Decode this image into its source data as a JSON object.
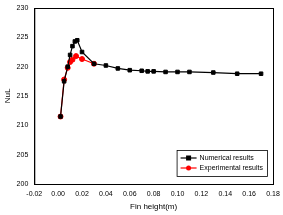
{
  "chart_data": {
    "type": "line",
    "x_label": "Fin height(m)",
    "y_label": "NuL",
    "xlim": [
      -0.02,
      0.18
    ],
    "xticks": [
      -0.02,
      {
        "value": 0,
        "label": "0.00"
      },
      0.02,
      0.04,
      0.06,
      0.08,
      {
        "value": 0.1,
        "label": "0.10"
      },
      0.12,
      0.14,
      0.16,
      0.18
    ],
    "ylim": [
      200,
      230
    ],
    "yticks": [
      200,
      205,
      210,
      215,
      220,
      225,
      230
    ],
    "grid": false,
    "legend": "lower right",
    "series": [
      {
        "name": "Numerical results",
        "color": "#000000",
        "marker": "square",
        "line_style": "solid",
        "x": [
          0.002,
          0.005,
          0.008,
          0.01,
          0.012,
          0.014,
          0.016,
          0.02,
          0.03,
          0.04,
          0.05,
          0.06,
          0.07,
          0.075,
          0.08,
          0.09,
          0.1,
          0.11,
          0.13,
          0.15,
          0.17
        ],
        "values": [
          211.5,
          217.5,
          220,
          222,
          223.5,
          224.3,
          224.5,
          222.5,
          220.5,
          220.2,
          219.7,
          219.4,
          219.3,
          219.2,
          219.2,
          219.1,
          219.1,
          219.1,
          219.0,
          218.8,
          218.8
        ]
      },
      {
        "name": "Experimental results",
        "color": "#ff0000",
        "marker": "circle",
        "line_style": "solid",
        "x": [
          0.002,
          0.005,
          0.008,
          0.01,
          0.012,
          0.015,
          0.02,
          0.03
        ],
        "values": [
          211.5,
          217.8,
          219.8,
          220.8,
          221.2,
          221.8,
          221.3,
          220.5
        ]
      }
    ]
  }
}
